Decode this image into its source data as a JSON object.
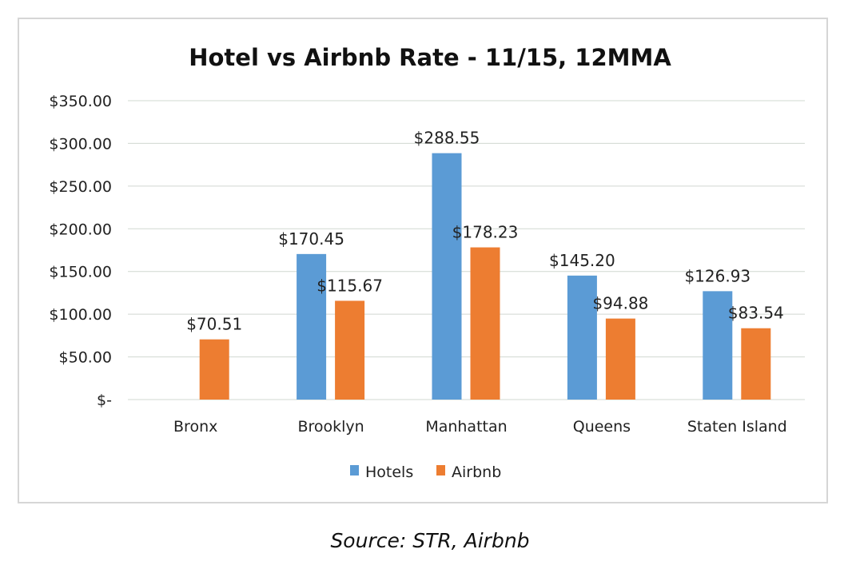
{
  "chart_data": {
    "type": "bar",
    "title": "Hotel vs Airbnb Rate - 11/15, 12MMA",
    "categories": [
      "Bronx",
      "Brooklyn",
      "Manhattan",
      "Queens",
      "Staten Island"
    ],
    "series": [
      {
        "name": "Hotels",
        "color": "#5b9bd5",
        "values": [
          null,
          170.45,
          288.55,
          145.2,
          126.93
        ],
        "labels": [
          "",
          "$170.45",
          "$288.55",
          "$145.20",
          "$126.93"
        ]
      },
      {
        "name": "Airbnb",
        "color": "#ed7d31",
        "values": [
          70.51,
          115.67,
          178.23,
          94.88,
          83.54
        ],
        "labels": [
          "$70.51",
          "$115.67",
          "$178.23",
          "$94.88",
          "$83.54"
        ]
      }
    ],
    "ylim": [
      0,
      350
    ],
    "yticks": [
      0,
      50,
      100,
      150,
      200,
      250,
      300,
      350
    ],
    "ytick_labels": [
      "$-",
      "$50.00",
      "$100.00",
      "$150.00",
      "$200.00",
      "$250.00",
      "$300.00",
      "$350.00"
    ],
    "xlabel": "",
    "ylabel": "",
    "grid": true,
    "legend": "bottom"
  },
  "source": "Source: STR, Airbnb"
}
